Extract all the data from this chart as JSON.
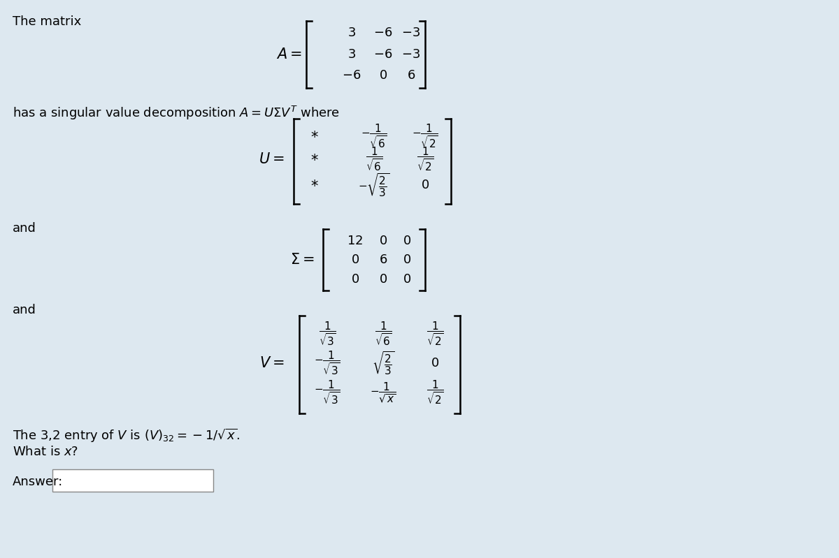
{
  "bg_color": "#dde8f0",
  "title_text": "The matrix",
  "svd_text": "has a singular value decomposition $A = U\\Sigma V^T$ where",
  "and_text": "and",
  "question_text": "The 3,2 entry of $V$ is $(V)_{32} = -1/\\sqrt{x}$.",
  "whatisX": "What is $x$?",
  "answer_label": "Answer:",
  "fig_width": 12.0,
  "fig_height": 7.99,
  "dpi": 100
}
